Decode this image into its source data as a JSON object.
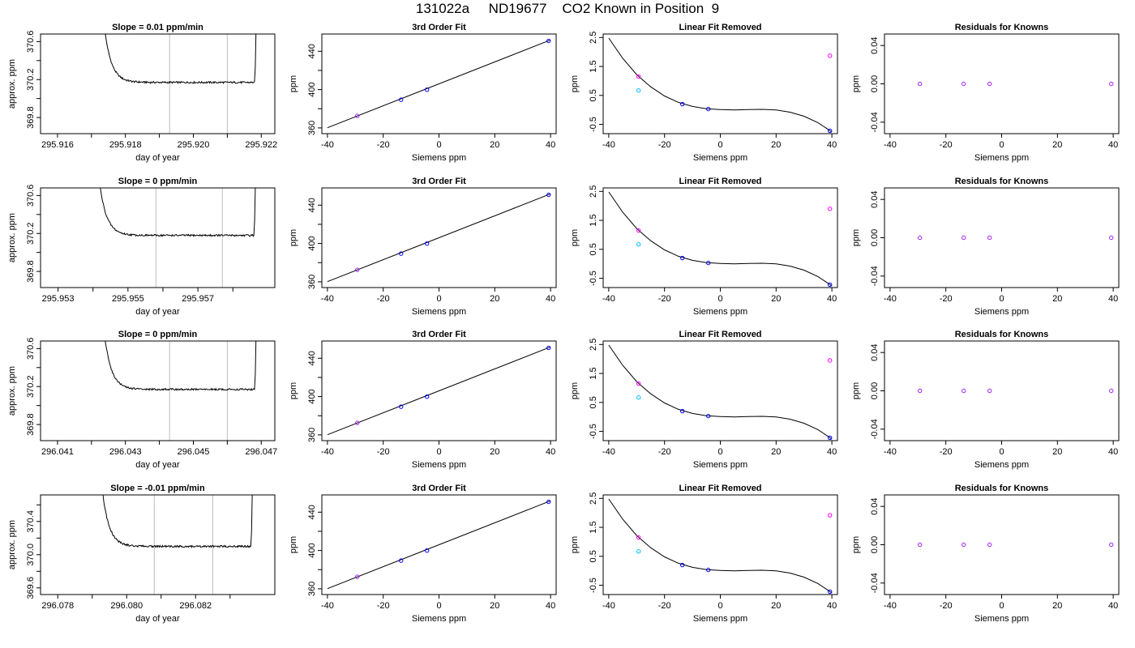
{
  "title": "131022a     ND19677    CO2 Known in Position  9",
  "colors": {
    "trace": "#000000",
    "marker_line": "#bebebe",
    "known": "#0000ff",
    "purple": "#a020f0",
    "cyan": "#00bfff",
    "magenta": "#ff00ff"
  },
  "chart_data": [
    {
      "id": "r0c0",
      "type": "line",
      "title": "Slope =  0.01  ppm/min",
      "xlabel": "day of year",
      "ylabel": "approx. ppm",
      "xlim": [
        295.9155,
        295.9224
      ],
      "ylim": [
        369.63,
        370.68
      ],
      "xticks": [
        295.916,
        295.917,
        295.918,
        295.919,
        295.92,
        295.921,
        295.922
      ],
      "xtick_labels": [
        "295.916",
        "",
        "295.918",
        "",
        "295.920",
        "",
        "295.922"
      ],
      "yticks": [
        369.8,
        370.0,
        370.2,
        370.4,
        370.6
      ],
      "ytick_labels": [
        "369.8",
        "",
        "370.2",
        "",
        "370.6"
      ],
      "vlines": [
        295.9193,
        295.921
      ],
      "trace": {
        "x_start": 295.9174,
        "x_end": 295.9218,
        "baseline": 370.17,
        "peak_left": 370.7,
        "peak_right": 370.7
      }
    },
    {
      "id": "r0c1",
      "type": "scatter",
      "title": "3rd Order Fit",
      "xlabel": "Siemens ppm",
      "ylabel": "ppm",
      "xlim": [
        -42,
        42
      ],
      "ylim": [
        354,
        458
      ],
      "xticks": [
        -40,
        -20,
        0,
        20,
        40
      ],
      "yticks": [
        360,
        380,
        400,
        420,
        440
      ],
      "ytick_labels": [
        "360",
        "",
        "400",
        "",
        "440"
      ],
      "line": {
        "x": [
          -40,
          40
        ],
        "y": [
          360.2,
          451.8
        ]
      },
      "points": [
        {
          "x": -29.3,
          "y": 372.5,
          "color": "purple"
        },
        {
          "x": -13.6,
          "y": 389.4,
          "color": "known"
        },
        {
          "x": -4.3,
          "y": 399.9,
          "color": "known"
        },
        {
          "x": 39.3,
          "y": 450.8,
          "color": "known"
        }
      ]
    },
    {
      "id": "r0c2",
      "type": "scatter",
      "title": "Linear Fit Removed",
      "xlabel": "Siemens ppm",
      "ylabel": "ppm",
      "xlim": [
        -42,
        42
      ],
      "ylim": [
        -0.82,
        2.62
      ],
      "xticks": [
        -40,
        -20,
        0,
        20,
        40
      ],
      "yticks": [
        -0.5,
        0.5,
        1.5,
        2.5
      ],
      "curve": {
        "x": [
          -40,
          -35,
          -30,
          -25,
          -20,
          -15,
          -10,
          -5,
          0,
          5,
          10,
          15,
          20,
          25,
          30,
          35,
          40
        ],
        "y": [
          2.48,
          1.78,
          1.22,
          0.8,
          0.48,
          0.26,
          0.12,
          0.04,
          0.01,
          0.0,
          0.01,
          0.02,
          0.0,
          -0.08,
          -0.22,
          -0.44,
          -0.76
        ]
      },
      "points": [
        {
          "x": -29.3,
          "y": 1.15,
          "color": "magenta"
        },
        {
          "x": -29.3,
          "y": 0.67,
          "color": "cyan"
        },
        {
          "x": -13.6,
          "y": 0.2,
          "color": "known"
        },
        {
          "x": -4.3,
          "y": 0.03,
          "color": "known"
        },
        {
          "x": 39.3,
          "y": 1.87,
          "color": "magenta"
        },
        {
          "x": 39.3,
          "y": -0.72,
          "color": "known"
        }
      ]
    },
    {
      "id": "r0c3",
      "type": "scatter",
      "title": "Residuals for Knowns",
      "xlabel": "Siemens ppm",
      "ylabel": "ppm",
      "xlim": [
        -42,
        42
      ],
      "ylim": [
        -0.052,
        0.052
      ],
      "xticks": [
        -40,
        -20,
        0,
        20,
        40
      ],
      "yticks": [
        -0.04,
        0.0,
        0.04
      ],
      "ytick_labels": [
        "-0.04",
        "0.00",
        "0.04"
      ],
      "points": [
        {
          "x": -29.3,
          "y": 0,
          "color": "purple"
        },
        {
          "x": -13.6,
          "y": 0,
          "color": "purple"
        },
        {
          "x": -4.3,
          "y": 0,
          "color": "purple"
        },
        {
          "x": 39.3,
          "y": 0,
          "color": "purple"
        }
      ]
    },
    {
      "id": "r1c0",
      "type": "line",
      "title": "Slope =  0  ppm/min",
      "xlabel": "day of year",
      "ylabel": "approx. ppm",
      "xlim": [
        295.9525,
        295.9592
      ],
      "ylim": [
        369.63,
        370.68
      ],
      "xticks": [
        295.953,
        295.954,
        295.955,
        295.956,
        295.957,
        295.958
      ],
      "xtick_labels": [
        "295.953",
        "",
        "295.955",
        "",
        "295.957",
        ""
      ],
      "yticks": [
        369.8,
        370.0,
        370.2,
        370.4,
        370.6
      ],
      "ytick_labels": [
        "369.8",
        "",
        "370.2",
        "",
        "370.6"
      ],
      "vlines": [
        295.9558,
        295.9577
      ],
      "trace": {
        "x_start": 295.9542,
        "x_end": 295.9586,
        "baseline": 370.18,
        "peak_left": 370.7,
        "peak_right": 370.7
      }
    },
    {
      "id": "r1c1",
      "type": "scatter",
      "title": "3rd Order Fit",
      "xlabel": "Siemens ppm",
      "ylabel": "ppm",
      "xlim": [
        -42,
        42
      ],
      "ylim": [
        354,
        458
      ],
      "xticks": [
        -40,
        -20,
        0,
        20,
        40
      ],
      "yticks": [
        360,
        380,
        400,
        420,
        440
      ],
      "ytick_labels": [
        "360",
        "",
        "400",
        "",
        "440"
      ],
      "line": {
        "x": [
          -40,
          40
        ],
        "y": [
          360.2,
          451.8
        ]
      },
      "points": [
        {
          "x": -29.3,
          "y": 372.5,
          "color": "purple"
        },
        {
          "x": -13.6,
          "y": 389.4,
          "color": "known"
        },
        {
          "x": -4.3,
          "y": 399.9,
          "color": "known"
        },
        {
          "x": 39.3,
          "y": 450.8,
          "color": "known"
        }
      ]
    },
    {
      "id": "r1c2",
      "type": "scatter",
      "title": "Linear Fit Removed",
      "xlabel": "Siemens ppm",
      "ylabel": "ppm",
      "xlim": [
        -42,
        42
      ],
      "ylim": [
        -0.82,
        2.62
      ],
      "xticks": [
        -40,
        -20,
        0,
        20,
        40
      ],
      "yticks": [
        -0.5,
        0.5,
        1.5,
        2.5
      ],
      "curve": {
        "x": [
          -40,
          -35,
          -30,
          -25,
          -20,
          -15,
          -10,
          -5,
          0,
          5,
          10,
          15,
          20,
          25,
          30,
          35,
          40
        ],
        "y": [
          2.48,
          1.78,
          1.22,
          0.8,
          0.48,
          0.26,
          0.12,
          0.04,
          0.01,
          0.0,
          0.01,
          0.02,
          0.0,
          -0.08,
          -0.22,
          -0.44,
          -0.76
        ]
      },
      "points": [
        {
          "x": -29.3,
          "y": 1.15,
          "color": "magenta"
        },
        {
          "x": -29.3,
          "y": 0.67,
          "color": "cyan"
        },
        {
          "x": -13.6,
          "y": 0.2,
          "color": "known"
        },
        {
          "x": -4.3,
          "y": 0.03,
          "color": "known"
        },
        {
          "x": 39.3,
          "y": 1.9,
          "color": "magenta"
        },
        {
          "x": 39.3,
          "y": -0.72,
          "color": "known"
        }
      ]
    },
    {
      "id": "r1c3",
      "type": "scatter",
      "title": "Residuals for Knowns",
      "xlabel": "Siemens ppm",
      "ylabel": "ppm",
      "xlim": [
        -42,
        42
      ],
      "ylim": [
        -0.052,
        0.052
      ],
      "xticks": [
        -40,
        -20,
        0,
        20,
        40
      ],
      "yticks": [
        -0.04,
        0.0,
        0.04
      ],
      "ytick_labels": [
        "-0.04",
        "0.00",
        "0.04"
      ],
      "points": [
        {
          "x": -29.3,
          "y": 0,
          "color": "purple"
        },
        {
          "x": -13.6,
          "y": 0,
          "color": "purple"
        },
        {
          "x": -4.3,
          "y": 0,
          "color": "purple"
        },
        {
          "x": 39.3,
          "y": 0,
          "color": "purple"
        }
      ]
    },
    {
      "id": "r2c0",
      "type": "line",
      "title": "Slope =  0  ppm/min",
      "xlabel": "day of year",
      "ylabel": "approx. ppm",
      "xlim": [
        296.0405,
        296.0474
      ],
      "ylim": [
        369.63,
        370.68
      ],
      "xticks": [
        296.041,
        296.042,
        296.043,
        296.044,
        296.045,
        296.046,
        296.047
      ],
      "xtick_labels": [
        "296.041",
        "",
        "296.043",
        "",
        "296.045",
        "",
        "296.047"
      ],
      "yticks": [
        369.8,
        370.0,
        370.2,
        370.4,
        370.6
      ],
      "ytick_labels": [
        "369.8",
        "",
        "370.2",
        "",
        "370.6"
      ],
      "vlines": [
        296.0443,
        296.046
      ],
      "trace": {
        "x_start": 296.0424,
        "x_end": 296.0468,
        "baseline": 370.17,
        "peak_left": 370.7,
        "peak_right": 370.7
      }
    },
    {
      "id": "r2c1",
      "type": "scatter",
      "title": "3rd Order Fit",
      "xlabel": "Siemens ppm",
      "ylabel": "ppm",
      "xlim": [
        -42,
        42
      ],
      "ylim": [
        354,
        458
      ],
      "xticks": [
        -40,
        -20,
        0,
        20,
        40
      ],
      "yticks": [
        360,
        380,
        400,
        420,
        440
      ],
      "ytick_labels": [
        "360",
        "",
        "400",
        "",
        "440"
      ],
      "line": {
        "x": [
          -40,
          40
        ],
        "y": [
          360.2,
          451.8
        ]
      },
      "points": [
        {
          "x": -29.3,
          "y": 372.5,
          "color": "purple"
        },
        {
          "x": -13.6,
          "y": 389.4,
          "color": "known"
        },
        {
          "x": -4.3,
          "y": 399.9,
          "color": "known"
        },
        {
          "x": 39.3,
          "y": 450.8,
          "color": "known"
        }
      ]
    },
    {
      "id": "r2c2",
      "type": "scatter",
      "title": "Linear Fit Removed",
      "xlabel": "Siemens ppm",
      "ylabel": "ppm",
      "xlim": [
        -42,
        42
      ],
      "ylim": [
        -0.82,
        2.62
      ],
      "xticks": [
        -40,
        -20,
        0,
        20,
        40
      ],
      "yticks": [
        -0.5,
        0.5,
        1.5,
        2.5
      ],
      "curve": {
        "x": [
          -40,
          -35,
          -30,
          -25,
          -20,
          -15,
          -10,
          -5,
          0,
          5,
          10,
          15,
          20,
          25,
          30,
          35,
          40
        ],
        "y": [
          2.48,
          1.78,
          1.22,
          0.8,
          0.48,
          0.26,
          0.12,
          0.04,
          0.01,
          0.0,
          0.01,
          0.02,
          0.0,
          -0.08,
          -0.22,
          -0.44,
          -0.76
        ]
      },
      "points": [
        {
          "x": -29.3,
          "y": 1.15,
          "color": "magenta"
        },
        {
          "x": -29.3,
          "y": 0.67,
          "color": "cyan"
        },
        {
          "x": -13.6,
          "y": 0.2,
          "color": "known"
        },
        {
          "x": -4.3,
          "y": 0.03,
          "color": "known"
        },
        {
          "x": 39.3,
          "y": 1.95,
          "color": "magenta"
        },
        {
          "x": 39.3,
          "y": -0.72,
          "color": "known"
        }
      ]
    },
    {
      "id": "r2c3",
      "type": "scatter",
      "title": "Residuals for Knowns",
      "xlabel": "Siemens ppm",
      "ylabel": "ppm",
      "xlim": [
        -42,
        42
      ],
      "ylim": [
        -0.052,
        0.052
      ],
      "xticks": [
        -40,
        -20,
        0,
        20,
        40
      ],
      "yticks": [
        -0.04,
        0.0,
        0.04
      ],
      "ytick_labels": [
        "-0.04",
        "0.00",
        "0.04"
      ],
      "points": [
        {
          "x": -29.3,
          "y": 0,
          "color": "purple"
        },
        {
          "x": -13.6,
          "y": 0,
          "color": "purple"
        },
        {
          "x": -4.3,
          "y": 0,
          "color": "purple"
        },
        {
          "x": 39.3,
          "y": 0,
          "color": "purple"
        }
      ]
    },
    {
      "id": "r3c0",
      "type": "line",
      "title": "Slope =  -0.01  ppm/min",
      "xlabel": "day of year",
      "ylabel": "approx. ppm",
      "xlim": [
        296.0775,
        296.0843
      ],
      "ylim": [
        369.52,
        370.72
      ],
      "xticks": [
        296.078,
        296.079,
        296.08,
        296.081,
        296.082,
        296.083
      ],
      "xtick_labels": [
        "296.078",
        "",
        "296.080",
        "",
        "296.082",
        ""
      ],
      "yticks": [
        369.6,
        369.8,
        370.0,
        370.2,
        370.4,
        370.6
      ],
      "ytick_labels": [
        "369.6",
        "",
        "370.0",
        "",
        "370.4",
        ""
      ],
      "vlines": [
        296.0808,
        296.0825
      ],
      "trace": {
        "x_start": 296.0793,
        "x_end": 296.0836,
        "baseline": 370.1,
        "peak_left": 370.75,
        "peak_right": 370.75
      }
    },
    {
      "id": "r3c1",
      "type": "scatter",
      "title": "3rd Order Fit",
      "xlabel": "Siemens ppm",
      "ylabel": "ppm",
      "xlim": [
        -42,
        42
      ],
      "ylim": [
        354,
        458
      ],
      "xticks": [
        -40,
        -20,
        0,
        20,
        40
      ],
      "yticks": [
        360,
        380,
        400,
        420,
        440
      ],
      "ytick_labels": [
        "360",
        "",
        "400",
        "",
        "440"
      ],
      "line": {
        "x": [
          -40,
          40
        ],
        "y": [
          360.2,
          451.8
        ]
      },
      "points": [
        {
          "x": -29.3,
          "y": 372.5,
          "color": "purple"
        },
        {
          "x": -13.6,
          "y": 389.4,
          "color": "known"
        },
        {
          "x": -4.3,
          "y": 399.9,
          "color": "known"
        },
        {
          "x": 39.3,
          "y": 450.8,
          "color": "known"
        }
      ]
    },
    {
      "id": "r3c2",
      "type": "scatter",
      "title": "Linear Fit Removed",
      "xlabel": "Siemens ppm",
      "ylabel": "ppm",
      "xlim": [
        -42,
        42
      ],
      "ylim": [
        -0.82,
        2.62
      ],
      "xticks": [
        -40,
        -20,
        0,
        20,
        40
      ],
      "yticks": [
        -0.5,
        0.5,
        1.5,
        2.5
      ],
      "curve": {
        "x": [
          -40,
          -35,
          -30,
          -25,
          -20,
          -15,
          -10,
          -5,
          0,
          5,
          10,
          15,
          20,
          25,
          30,
          35,
          40
        ],
        "y": [
          2.48,
          1.78,
          1.22,
          0.8,
          0.48,
          0.26,
          0.12,
          0.04,
          0.01,
          0.0,
          0.01,
          0.02,
          0.0,
          -0.08,
          -0.22,
          -0.44,
          -0.76
        ]
      },
      "points": [
        {
          "x": -29.3,
          "y": 1.15,
          "color": "magenta"
        },
        {
          "x": -29.3,
          "y": 0.67,
          "color": "cyan"
        },
        {
          "x": -13.6,
          "y": 0.2,
          "color": "known"
        },
        {
          "x": -4.3,
          "y": 0.03,
          "color": "known"
        },
        {
          "x": 39.3,
          "y": 1.92,
          "color": "magenta"
        },
        {
          "x": 39.3,
          "y": -0.72,
          "color": "known"
        }
      ]
    },
    {
      "id": "r3c3",
      "type": "scatter",
      "title": "Residuals for Knowns",
      "xlabel": "Siemens ppm",
      "ylabel": "ppm",
      "xlim": [
        -42,
        42
      ],
      "ylim": [
        -0.052,
        0.052
      ],
      "xticks": [
        -40,
        -20,
        0,
        20,
        40
      ],
      "yticks": [
        -0.04,
        0.0,
        0.04
      ],
      "ytick_labels": [
        "-0.04",
        "0.00",
        "0.04"
      ],
      "points": [
        {
          "x": -29.3,
          "y": 0,
          "color": "purple"
        },
        {
          "x": -13.6,
          "y": 0,
          "color": "purple"
        },
        {
          "x": -4.3,
          "y": 0,
          "color": "purple"
        },
        {
          "x": 39.3,
          "y": 0,
          "color": "purple"
        }
      ]
    }
  ]
}
